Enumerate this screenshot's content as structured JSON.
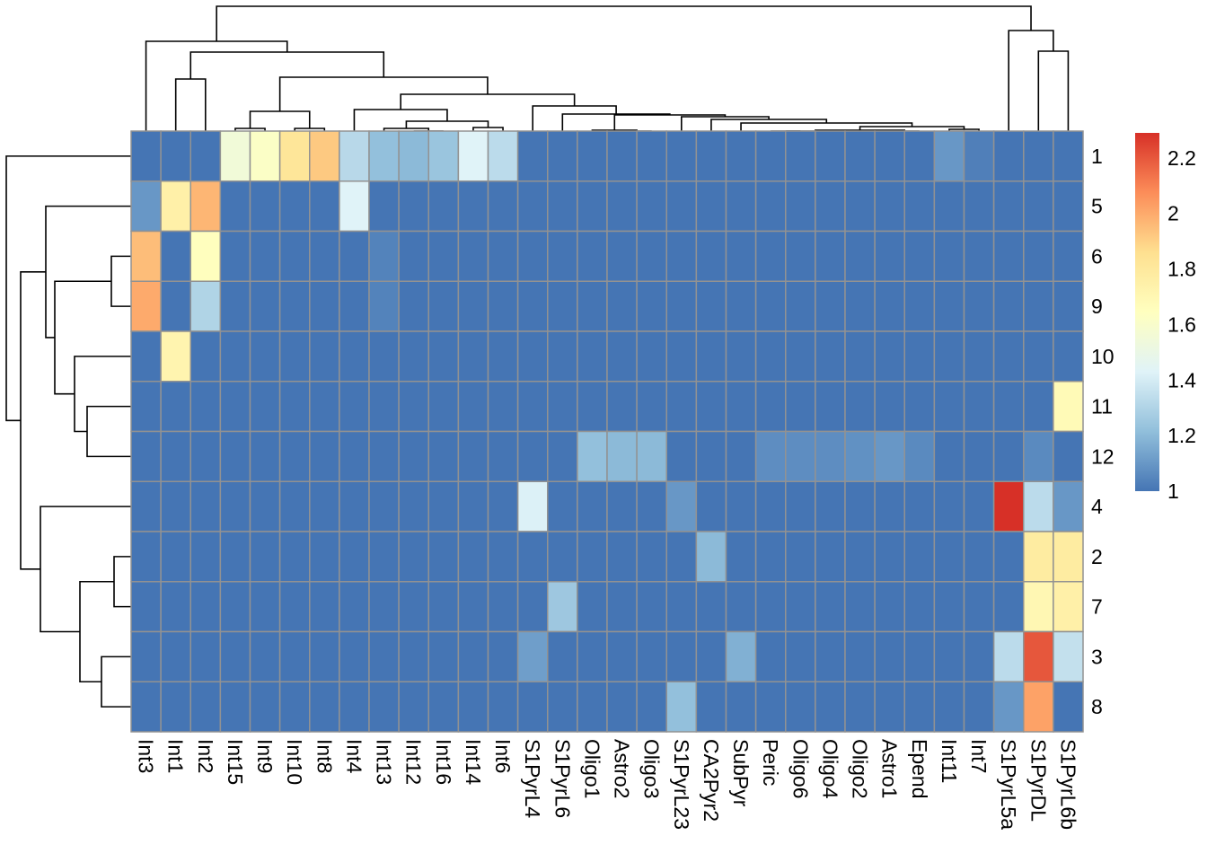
{
  "chart_data": {
    "type": "heatmap",
    "title": "",
    "columns": [
      "Int3",
      "Int1",
      "Int2",
      "Int15",
      "Int9",
      "Int10",
      "Int8",
      "Int4",
      "Int13",
      "Int12",
      "Int16",
      "Int14",
      "Int6",
      "S1PyrL4",
      "S1PyrL6",
      "Oligo1",
      "Astro2",
      "Oligo3",
      "S1PyrL23",
      "CA2Pyr2",
      "SubPyr",
      "Peric",
      "Oligo6",
      "Oligo4",
      "Oligo2",
      "Astro1",
      "Epend",
      "Int11",
      "Int7",
      "S1PyrL5a",
      "S1PyrDL",
      "S1PyrL6b"
    ],
    "rows": [
      "1",
      "5",
      "6",
      "9",
      "10",
      "11",
      "12",
      "4",
      "2",
      "7",
      "3",
      "8"
    ],
    "values": [
      [
        1,
        1,
        1,
        1.55,
        1.62,
        1.82,
        1.92,
        1.32,
        1.22,
        1.2,
        1.24,
        1.43,
        1.33,
        1,
        1,
        1,
        1,
        1,
        1,
        1,
        1,
        1,
        1,
        1,
        1,
        1,
        1,
        1.1,
        1.03,
        1,
        1,
        1
      ],
      [
        1.1,
        1.75,
        1.97,
        1,
        1,
        1,
        1,
        1.43,
        1,
        1,
        1,
        1,
        1,
        1,
        1,
        1,
        1,
        1,
        1,
        1,
        1,
        1,
        1,
        1,
        1,
        1,
        1,
        1,
        1,
        1,
        1,
        1
      ],
      [
        1.95,
        1,
        1.65,
        1,
        1,
        1,
        1,
        1,
        1.04,
        1,
        1,
        1,
        1,
        1,
        1,
        1,
        1,
        1,
        1,
        1,
        1,
        1,
        1,
        1,
        1,
        1,
        1,
        1,
        1,
        1,
        1,
        1
      ],
      [
        2.0,
        1,
        1.3,
        1,
        1,
        1,
        1,
        1,
        1.04,
        1,
        1,
        1,
        1,
        1,
        1,
        1,
        1,
        1,
        1,
        1,
        1,
        1,
        1,
        1,
        1,
        1,
        1,
        1,
        1,
        1,
        1,
        1
      ],
      [
        1,
        1.72,
        1,
        1,
        1,
        1,
        1,
        1,
        1,
        1,
        1,
        1,
        1,
        1,
        1,
        1,
        1,
        1,
        1,
        1,
        1,
        1,
        1,
        1,
        1,
        1,
        1,
        1,
        1,
        1,
        1,
        1
      ],
      [
        1,
        1,
        1,
        1,
        1,
        1,
        1,
        1,
        1,
        1,
        1,
        1,
        1,
        1,
        1,
        1,
        1,
        1,
        1,
        1,
        1,
        1,
        1,
        1,
        1,
        1,
        1,
        1,
        1,
        1,
        1,
        1.68
      ],
      [
        1,
        1,
        1,
        1,
        1,
        1,
        1,
        1,
        1,
        1,
        1,
        1,
        1,
        1,
        1,
        1.22,
        1.2,
        1.2,
        1,
        1,
        1,
        1.07,
        1.07,
        1.07,
        1.08,
        1.1,
        1.06,
        1,
        1,
        1,
        1.06,
        1
      ],
      [
        1,
        1,
        1,
        1,
        1,
        1,
        1,
        1,
        1,
        1,
        1,
        1,
        1,
        1.42,
        1,
        1,
        1,
        1,
        1.1,
        1,
        1,
        1,
        1,
        1,
        1,
        1,
        1,
        1,
        1,
        2.29,
        1.33,
        1.1
      ],
      [
        1,
        1,
        1,
        1,
        1,
        1,
        1,
        1,
        1,
        1,
        1,
        1,
        1,
        1,
        1,
        1,
        1,
        1,
        1,
        1.2,
        1,
        1,
        1,
        1,
        1,
        1,
        1,
        1,
        1,
        1,
        1.78,
        1.78
      ],
      [
        1,
        1,
        1,
        1,
        1,
        1,
        1,
        1,
        1,
        1,
        1,
        1,
        1,
        1,
        1.25,
        1,
        1,
        1,
        1,
        1,
        1,
        1,
        1,
        1,
        1,
        1,
        1,
        1,
        1,
        1,
        1.7,
        1.75
      ],
      [
        1,
        1,
        1,
        1,
        1,
        1,
        1,
        1,
        1,
        1,
        1,
        1,
        1,
        1.12,
        1,
        1,
        1,
        1,
        1,
        1,
        1.17,
        1,
        1,
        1,
        1,
        1,
        1,
        1,
        1,
        1.33,
        2.2,
        1.35
      ],
      [
        1,
        1,
        1,
        1,
        1,
        1,
        1,
        1,
        1,
        1,
        1,
        1,
        1,
        1,
        1,
        1,
        1,
        1,
        1.22,
        1,
        1,
        1,
        1,
        1,
        1,
        1,
        1,
        1,
        1,
        1.1,
        2.02,
        1
      ]
    ],
    "color_range": [
      1,
      2.29
    ],
    "palette": [
      "#4575B4",
      "#91BFDB",
      "#E0F3F8",
      "#FFFFBF",
      "#FEE090",
      "#FC8D59",
      "#D73027"
    ],
    "cell_border_color": "#929292",
    "legend": {
      "position": "right",
      "ticks": [
        "1",
        "1.2",
        "1.4",
        "1.6",
        "1.8",
        "2",
        "2.2"
      ]
    },
    "row_dendrogram": true,
    "column_dendrogram": true
  }
}
